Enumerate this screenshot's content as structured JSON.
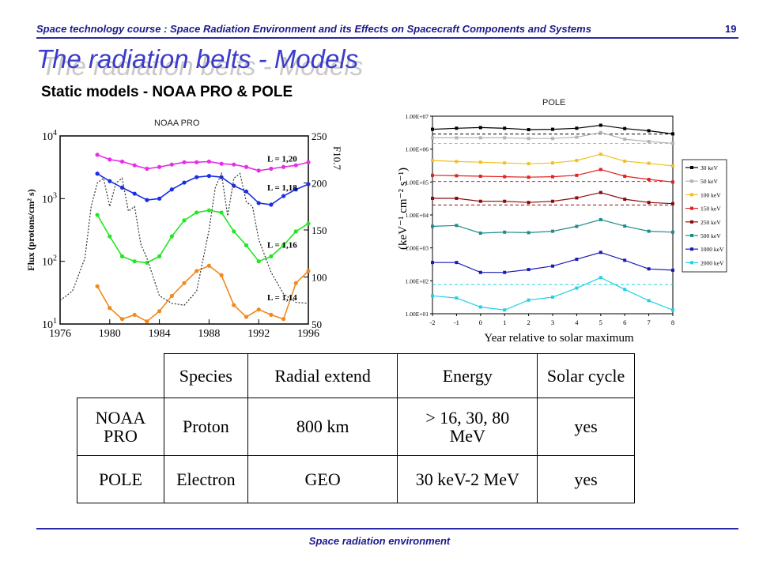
{
  "header": {
    "course_title": "Space technology course : Space Radiation Environment and its Effects on Spacecraft Components and Systems",
    "page_number": "19"
  },
  "slide": {
    "title": "The radiation belts - Models",
    "subtitle": "Static models - NOAA PRO  & POLE"
  },
  "footer": {
    "text": "Space radiation environment"
  },
  "colors": {
    "header_text": "#1a1a8c",
    "title": "#3c3ccc",
    "title_shadow": "#c9c9c9",
    "rule": "#2a2aa8"
  },
  "chart_data": [
    {
      "type": "line",
      "caption": "NOAA PRO",
      "ylabel": "Flux (protons/cm² s)",
      "y2label": "F10.7",
      "x_ticks": [
        "1976",
        "1980",
        "1984",
        "1988",
        "1992",
        "1996"
      ],
      "xlim": [
        1976,
        1996
      ],
      "y_log": true,
      "ylim": [
        10,
        10000
      ],
      "y_ticks": [
        {
          "base": "10",
          "exp": "4",
          "value": 10000
        },
        {
          "base": "10",
          "exp": "3",
          "value": 1000
        },
        {
          "base": "10",
          "exp": "2",
          "value": 100
        },
        {
          "base": "10",
          "exp": "1",
          "value": 10
        }
      ],
      "y2lim": [
        50,
        250
      ],
      "y2_ticks": [
        "250",
        "200",
        "150",
        "100",
        "50"
      ],
      "x": [
        1979,
        1980,
        1981,
        1982,
        1983,
        1984,
        1985,
        1986,
        1987,
        1988,
        1989,
        1990,
        1991,
        1992,
        1993,
        1994,
        1995,
        1996
      ],
      "series": [
        {
          "name": "L = 1,20",
          "color": "#e62ee6",
          "values": [
            5000,
            4200,
            3900,
            3400,
            3000,
            3200,
            3500,
            3800,
            3800,
            3900,
            3600,
            3500,
            3200,
            2800,
            3000,
            3200,
            3400,
            3800
          ]
        },
        {
          "name": "L = 1,18",
          "color": "#1a2ee6",
          "values": [
            2500,
            1900,
            1500,
            1200,
            950,
            1000,
            1400,
            1800,
            2200,
            2300,
            2200,
            1600,
            1300,
            850,
            800,
            1100,
            1400,
            1700
          ]
        },
        {
          "name": "L = 1,16",
          "color": "#22e622",
          "values": [
            550,
            250,
            120,
            100,
            95,
            120,
            250,
            450,
            600,
            650,
            600,
            300,
            180,
            100,
            120,
            180,
            300,
            400
          ]
        },
        {
          "name": "L = 1,14",
          "color": "#f0891e",
          "values": [
            40,
            18,
            12,
            14,
            11,
            16,
            28,
            45,
            70,
            85,
            60,
            20,
            13,
            17,
            14,
            12,
            45,
            70
          ]
        },
        {
          "name": "F10.7",
          "color": "#333333",
          "dashed": true,
          "axis": "right",
          "x": [
            1976,
            1977,
            1978,
            1978.5,
            1979,
            1979.5,
            1980,
            1980.5,
            1981,
            1981.5,
            1982,
            1982.5,
            1983,
            1984,
            1985,
            1986,
            1987,
            1988,
            1988.5,
            1989,
            1989.5,
            1990,
            1990.5,
            1991,
            1991.5,
            1992,
            1993,
            1994,
            1995,
            1996
          ],
          "values": [
            75,
            85,
            120,
            175,
            200,
            205,
            175,
            200,
            205,
            170,
            175,
            135,
            120,
            80,
            72,
            70,
            85,
            150,
            195,
            210,
            165,
            205,
            210,
            180,
            175,
            140,
            105,
            82,
            73,
            72
          ]
        }
      ],
      "annotations": [
        "L = 1,20",
        "L = 1,18",
        "L = 1,16",
        "L = 1,14"
      ]
    },
    {
      "type": "line",
      "caption": "POLE",
      "xlabel": "Year relative to solar maximum",
      "ylabel": "(keV⁻¹ cm⁻² s⁻¹)",
      "x": [
        -2,
        -1,
        0,
        1,
        2,
        3,
        4,
        5,
        6,
        7,
        8
      ],
      "x_ticks": [
        "-2",
        "-1",
        "0",
        "1",
        "2",
        "3",
        "4",
        "5",
        "6",
        "7",
        "8"
      ],
      "y_log": true,
      "ylim": [
        10,
        10000000
      ],
      "y_ticks": [
        "1.00E+07",
        "1.00E+06",
        "1.00E+05",
        "1.00E+04",
        "1.00E+03",
        "1.00E+02",
        "1.00E+01"
      ],
      "legend_position": "right",
      "series": [
        {
          "name": "30 keV",
          "color": "#000000",
          "values": [
            4000000,
            4300000,
            4500000,
            4300000,
            3900000,
            4000000,
            4300000,
            5300000,
            4200000,
            3600000,
            2900000
          ]
        },
        {
          "name": "50 keV",
          "color": "#b4b4b4",
          "values": [
            2200000,
            2200000,
            2200000,
            2200000,
            2100000,
            2100000,
            2300000,
            3200000,
            2000000,
            1700000,
            1500000
          ]
        },
        {
          "name": "100 keV",
          "color": "#f0c21e",
          "values": [
            450000,
            420000,
            400000,
            380000,
            360000,
            380000,
            450000,
            700000,
            430000,
            370000,
            310000
          ]
        },
        {
          "name": "150 keV",
          "color": "#e22222",
          "values": [
            160000,
            155000,
            150000,
            145000,
            140000,
            145000,
            160000,
            240000,
            150000,
            120000,
            100000
          ]
        },
        {
          "name": "250 keV",
          "color": "#8b0a0a",
          "values": [
            32000,
            32000,
            26000,
            26000,
            24000,
            26000,
            33000,
            48000,
            30000,
            24000,
            22000
          ]
        },
        {
          "name": "500 keV",
          "color": "#1e8c8c",
          "values": [
            4500,
            4800,
            2800,
            3000,
            2900,
            3200,
            4500,
            7200,
            4600,
            3200,
            3000
          ]
        },
        {
          "name": "1000 keV",
          "color": "#1a1ab4",
          "values": [
            360,
            360,
            180,
            180,
            220,
            280,
            450,
            730,
            420,
            230,
            210
          ]
        },
        {
          "name": "2000 keV",
          "color": "#1ed2e6",
          "values": [
            35,
            30,
            16,
            13,
            26,
            32,
            60,
            125,
            55,
            25,
            13
          ]
        }
      ]
    }
  ],
  "table": {
    "headers": [
      "",
      "Species",
      "Radial extend",
      "Energy",
      "Solar cycle"
    ],
    "rows": [
      [
        "NOAA\nPRO",
        "Proton",
        "800 km",
        "> 16, 30, 80\nMeV",
        "yes"
      ],
      [
        "POLE",
        "Electron",
        "GEO",
        "30 keV-2 MeV",
        "yes"
      ]
    ]
  }
}
